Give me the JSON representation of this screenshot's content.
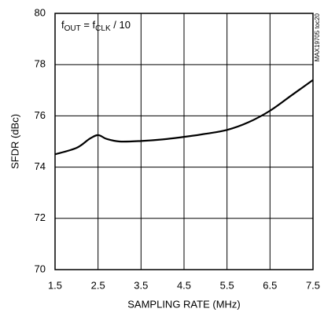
{
  "chart_data": {
    "type": "line",
    "x_label": "SAMPLING RATE (MHz)",
    "y_label": "SFDR (dBc)",
    "annotation": [
      "f",
      "OUT",
      " = f",
      "CLK",
      " / 10"
    ],
    "side_note": "MAX19705 toc20",
    "x": [
      1.5,
      2.0,
      2.3,
      2.5,
      2.7,
      3.0,
      3.5,
      4.0,
      4.5,
      5.0,
      5.5,
      6.0,
      6.5,
      7.0,
      7.5
    ],
    "series": [
      {
        "color": "#000000",
        "values": [
          74.5,
          74.75,
          75.1,
          75.25,
          75.1,
          75.0,
          75.02,
          75.08,
          75.18,
          75.3,
          75.45,
          75.75,
          76.2,
          76.8,
          77.4
        ]
      }
    ],
    "xlim": [
      1.5,
      7.5
    ],
    "xticks": [
      1.5,
      2.5,
      3.5,
      4.5,
      5.5,
      6.5,
      7.5
    ],
    "ylim": [
      70,
      80
    ],
    "yticks": [
      70,
      72,
      74,
      76,
      78,
      80
    ],
    "grid": true
  }
}
